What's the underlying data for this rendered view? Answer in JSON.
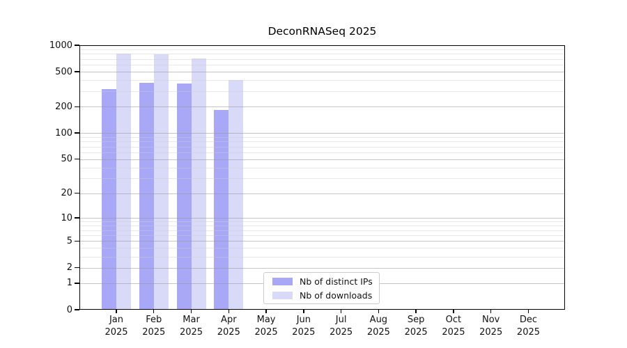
{
  "chart_data": {
    "type": "bar",
    "title": "DeconRNASeq 2025",
    "categories": [
      "Jan 2025",
      "Feb 2025",
      "Mar 2025",
      "Apr 2025",
      "May 2025",
      "Jun 2025",
      "Jul 2025",
      "Aug 2025",
      "Sep 2025",
      "Oct 2025",
      "Nov 2025",
      "Dec 2025"
    ],
    "x_tick_line1": [
      "Jan",
      "Feb",
      "Mar",
      "Apr",
      "May",
      "Jun",
      "Jul",
      "Aug",
      "Sep",
      "Oct",
      "Nov",
      "Dec"
    ],
    "x_tick_line2": [
      "2025",
      "2025",
      "2025",
      "2025",
      "2025",
      "2025",
      "2025",
      "2025",
      "2025",
      "2025",
      "2025",
      "2025"
    ],
    "series": [
      {
        "name": "Nb of distinct IPs",
        "color": "#a8a8f7",
        "values": [
          315,
          375,
          370,
          185,
          null,
          null,
          null,
          null,
          null,
          null,
          null,
          null
        ]
      },
      {
        "name": "Nb of downloads",
        "color": "#d9d9f8",
        "values": [
          810,
          790,
          710,
          400,
          null,
          null,
          null,
          null,
          null,
          null,
          null,
          null
        ]
      }
    ],
    "y_axis": {
      "scale": "log10(value+1)",
      "major_ticks": [
        0,
        1,
        2,
        5,
        10,
        20,
        50,
        100,
        200,
        500,
        1000
      ],
      "minor_gridlines": [
        3,
        4,
        6,
        7,
        8,
        9,
        30,
        40,
        60,
        70,
        80,
        90,
        300,
        400,
        600,
        700,
        800,
        900
      ],
      "max": 1000
    },
    "legend": {
      "entries": [
        "Nb of distinct IPs",
        "Nb of downloads"
      ],
      "position": "inside-bottom-center"
    },
    "grid": true,
    "colors": {
      "distinct_ips": "#a8a8f7",
      "downloads": "#d9d9f8",
      "major_grid": "#cbcbcb",
      "minor_grid": "#e6e6e6",
      "axis": "#000000"
    }
  }
}
